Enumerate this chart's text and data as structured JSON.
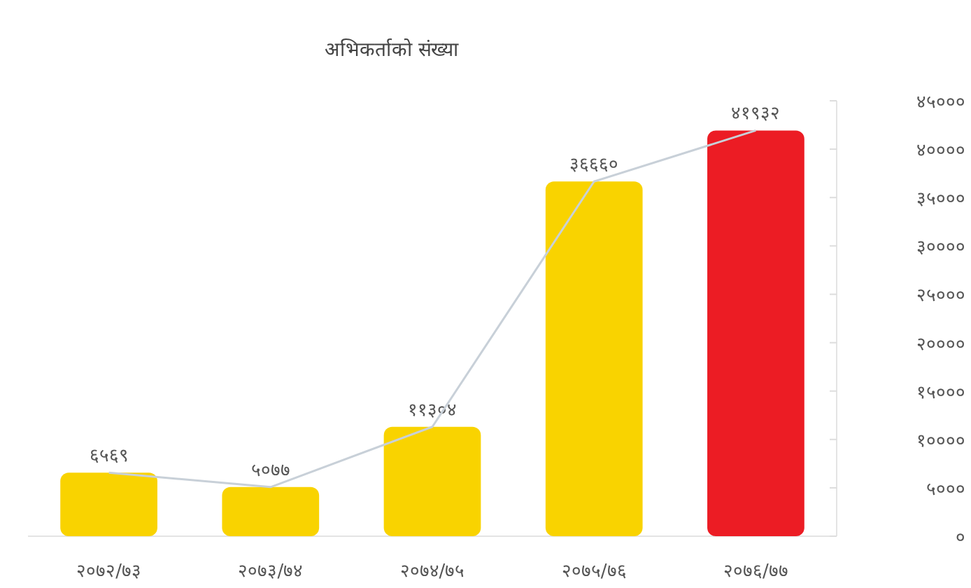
{
  "chart_data": {
    "type": "bar",
    "title": "अभिकर्ताको संख्या",
    "categories": [
      "२०७२/७३",
      "२०७३/७४",
      "२०७४/७५",
      "२०७५/७६",
      "२०७६/७७"
    ],
    "series": [
      {
        "colors": [
          "#f9d300",
          "#f9d300",
          "#f9d300",
          "#f9d300",
          "#ec1c24"
        ],
        "values": [
          6569,
          5077,
          11304,
          36660,
          41932
        ],
        "value_labels": [
          "६५६९",
          "५०७७",
          "११३०४",
          "३६६६०",
          "४१९३२"
        ]
      },
      {
        "type": "line",
        "color": "#c8d0d8",
        "values": [
          6569,
          5077,
          11304,
          36660,
          41932
        ]
      }
    ],
    "ylim": [
      0,
      45000
    ],
    "yticks": [
      {
        "value": 0,
        "label": "०"
      },
      {
        "value": 5000,
        "label": "५०००"
      },
      {
        "value": 10000,
        "label": "१००००"
      },
      {
        "value": 15000,
        "label": "१५०००"
      },
      {
        "value": 20000,
        "label": "२००००"
      },
      {
        "value": 25000,
        "label": "२५०००"
      },
      {
        "value": 30000,
        "label": "३००००"
      },
      {
        "value": 35000,
        "label": "३५०००"
      },
      {
        "value": 40000,
        "label": "४००००"
      },
      {
        "value": 45000,
        "label": "४५०००"
      }
    ]
  }
}
